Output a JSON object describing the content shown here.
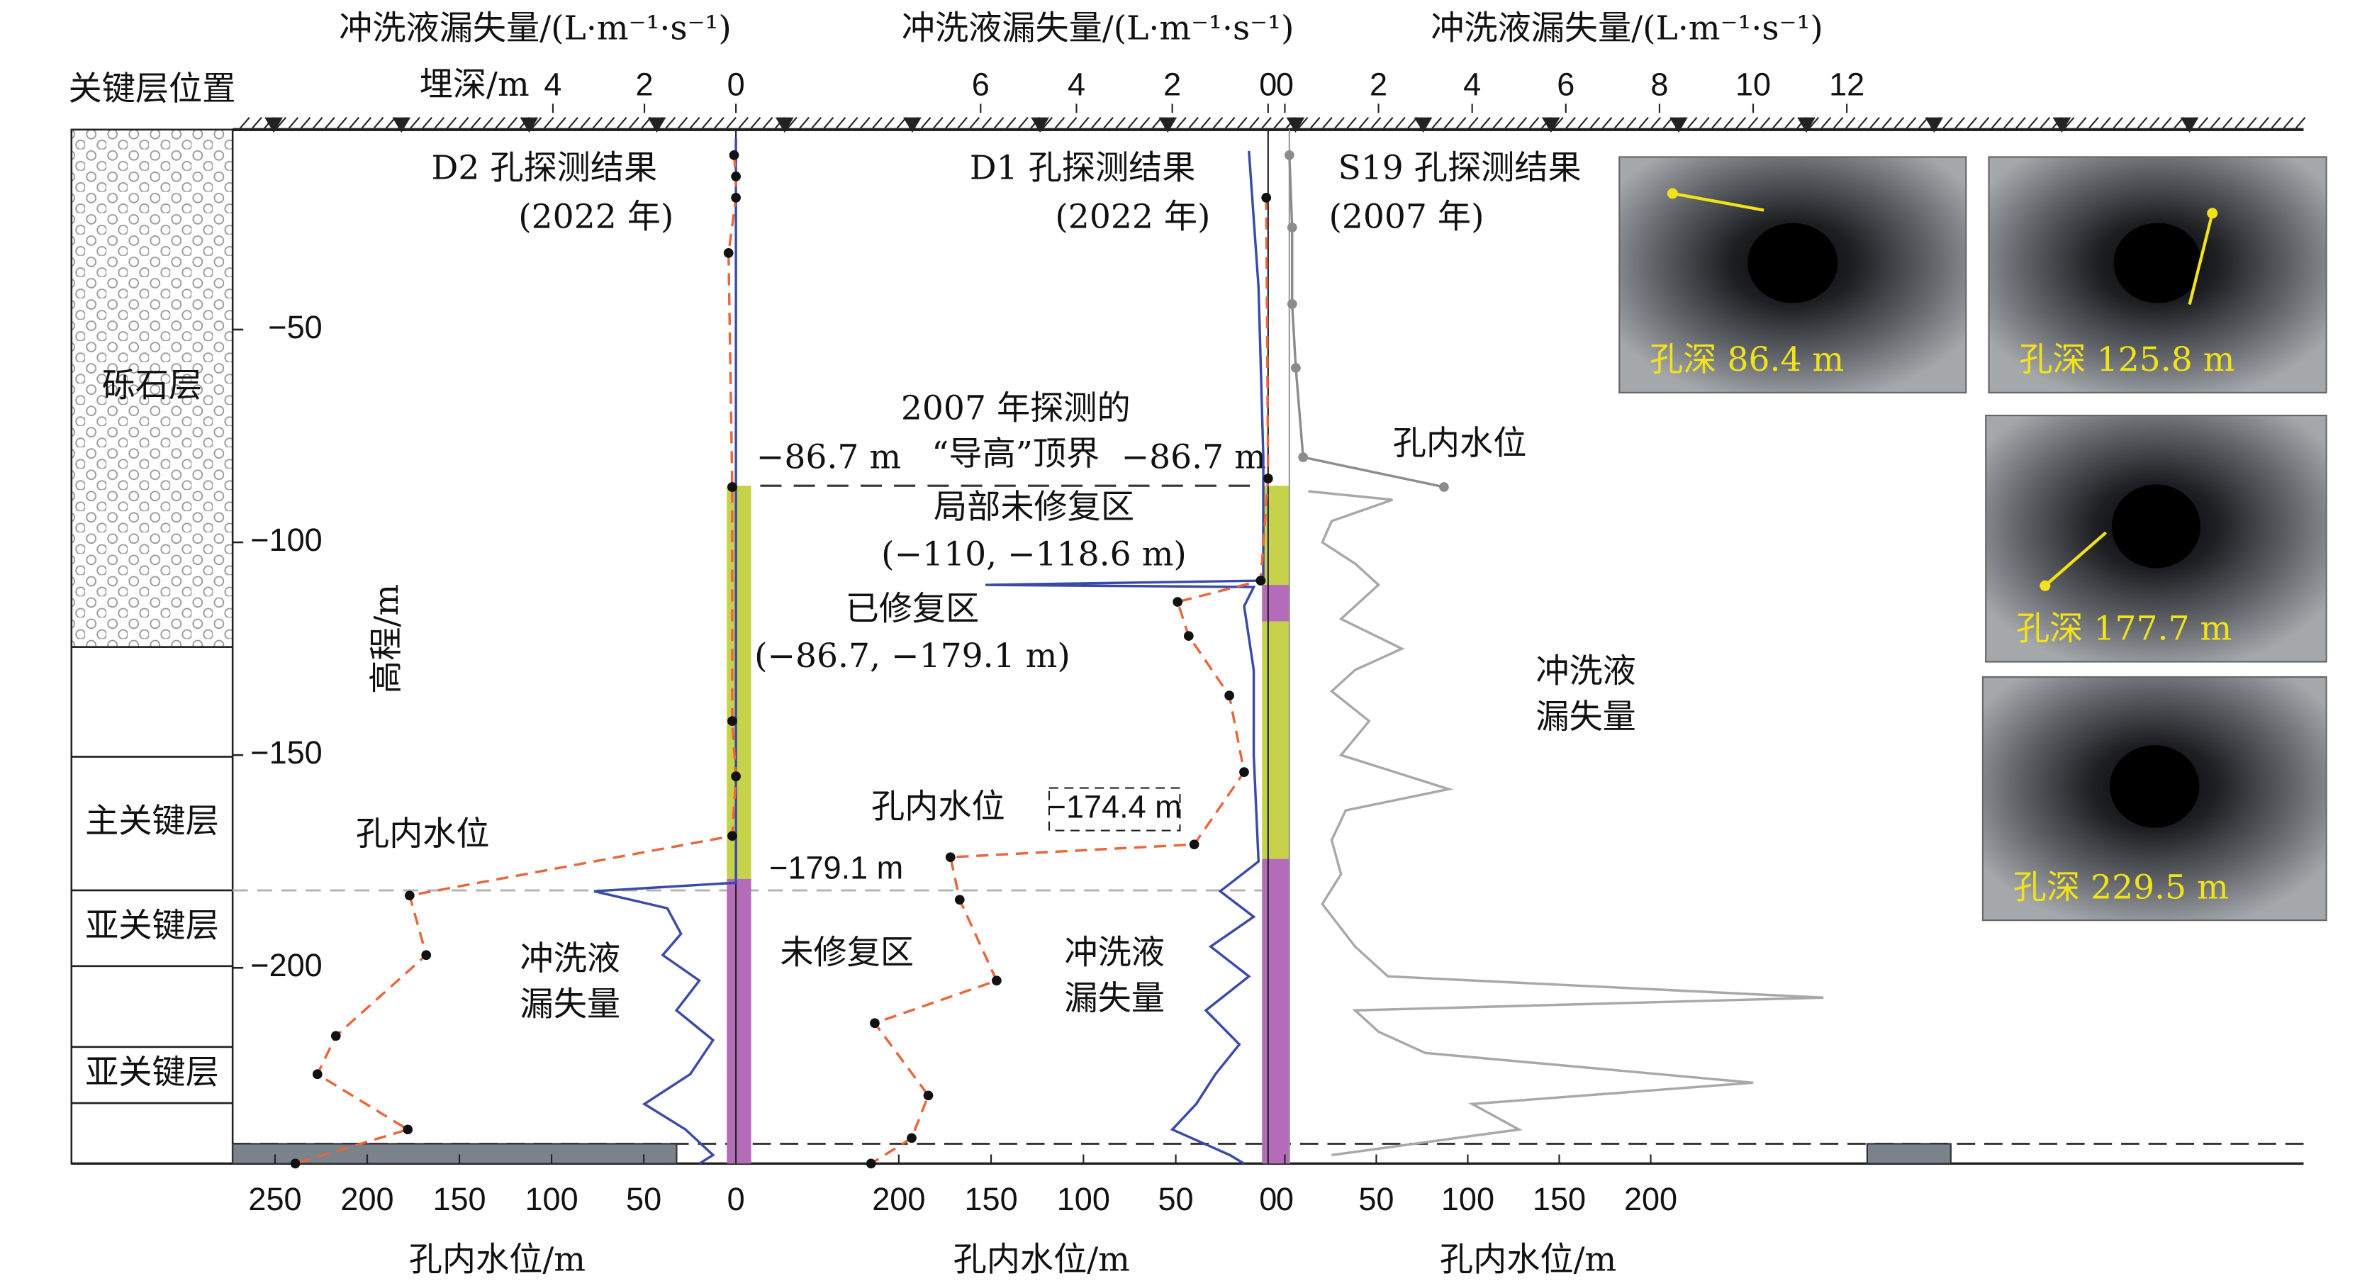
{
  "header": {
    "strata_title": "关键层位置",
    "depth_label": "埋深/m"
  },
  "elevation_axis": {
    "label": "高程/m",
    "ylim": [
      -246,
      -3
    ],
    "yticks": [
      {
        "value": -50,
        "label": "−50"
      },
      {
        "value": -100,
        "label": "−100"
      },
      {
        "value": -150,
        "label": "−150"
      },
      {
        "value": -200,
        "label": "−200"
      }
    ]
  },
  "strata": [
    {
      "name": "砾石层",
      "top": -3,
      "bottom": -124.6,
      "pattern": "gravel"
    },
    {
      "name": null,
      "top": -124.6,
      "bottom": -150.4,
      "pattern": "plain"
    },
    {
      "name": "主关键层",
      "top": -150.4,
      "bottom": -181.8,
      "pattern": "plain"
    },
    {
      "name": "亚关键层",
      "top": -181.8,
      "bottom": -199.6,
      "pattern": "plain"
    },
    {
      "name": null,
      "top": -199.6,
      "bottom": -218.6,
      "pattern": "plain"
    },
    {
      "name": "亚关键层",
      "top": -218.6,
      "bottom": -231.8,
      "pattern": "plain"
    },
    {
      "name": null,
      "top": -231.8,
      "bottom": -246,
      "pattern": "plain"
    }
  ],
  "reference_line": {
    "elevation": -86.7,
    "label_left": "−86.7 m",
    "label_right": "−86.7 m",
    "caption": [
      "2007 年探测的",
      "“导高”顶界"
    ]
  },
  "chart_data": [
    {
      "type": "line",
      "title": "D2 孔探测结果",
      "subtitle": "(2022 年)",
      "xlabel": "冲洗液漏失量/(L·m⁻¹·s⁻¹)",
      "xlim": [
        11,
        0
      ],
      "xticks": [
        4,
        2,
        0
      ],
      "x2label": "孔内水位/m",
      "x2lim": [
        273,
        0
      ],
      "x2ticks": [
        250,
        200,
        150,
        100,
        50,
        0
      ],
      "water_label": "孔内水位",
      "leak_label": [
        "冲洗液",
        "漏失量"
      ],
      "series": [
        {
          "axis": "x",
          "color": "#3a4aa8",
          "elevation": [
            -5,
            -180,
            -182,
            -186,
            -192,
            -197,
            -203,
            -210,
            -217,
            -225,
            -232,
            -238,
            -244,
            -246
          ],
          "values": [
            0,
            0,
            3.1,
            1.5,
            1.2,
            1.6,
            0.8,
            1.3,
            0.5,
            1.0,
            2.0,
            1.1,
            0.5,
            0.8
          ]
        },
        {
          "axis": "x2",
          "color": "#e8663a",
          "dashed": true,
          "markers": true,
          "elevation": [
            -9,
            -14,
            -19,
            -32,
            -87,
            -142,
            -155,
            -169,
            -183,
            -197,
            -216,
            -225,
            -238,
            -246
          ],
          "values": [
            1,
            0,
            0,
            4,
            2,
            2,
            0,
            2,
            177,
            168,
            217,
            227,
            178,
            239
          ]
        }
      ],
      "zones": [
        {
          "name": "已修复区",
          "range_label": "(−86.7, −179.1 m)",
          "from": -86.7,
          "to": -179.1,
          "color": "#c6d24a"
        },
        {
          "name": "未修复区",
          "boundary_label": "−179.1 m",
          "from": -179.1,
          "to": -246,
          "color": "#b46cb8"
        }
      ]
    },
    {
      "type": "line",
      "title": "D1 孔探测结果",
      "subtitle": "(2022 年)",
      "xlabel": "冲洗液漏失量/(L·m⁻¹·s⁻¹)",
      "xlim": [
        10.6,
        0
      ],
      "xticks": [
        6,
        4,
        2,
        0
      ],
      "x2label": "孔内水位/m",
      "x2lim": [
        275,
        0
      ],
      "x2ticks": [
        200,
        150,
        100,
        50,
        0
      ],
      "water_label": "孔内水位",
      "leak_label": [
        "冲洗液",
        "漏失量"
      ],
      "series": [
        {
          "axis": "x",
          "color": "#3a4aa8",
          "elevation": [
            -8,
            -40,
            -80,
            -109,
            -110,
            -110.5,
            -115,
            -130,
            -150,
            -175,
            -182,
            -188,
            -195,
            -202,
            -210,
            -218,
            -225,
            -232,
            -238,
            -244,
            -246
          ],
          "values": [
            0.4,
            0.2,
            0.1,
            0.1,
            5.9,
            0.3,
            0.5,
            0.3,
            0.3,
            0.2,
            1,
            0.3,
            1.2,
            0.4,
            1.3,
            0.6,
            1.1,
            1.5,
            2.0,
            0.8,
            0.5
          ]
        },
        {
          "axis": "x2",
          "color": "#e8663a",
          "dashed": true,
          "markers": true,
          "elevation": [
            -19,
            -85,
            -109,
            -114,
            -122,
            -136,
            -154,
            -171,
            -174,
            -184,
            -203,
            -213,
            -230,
            -240,
            -246
          ],
          "values": [
            1,
            0,
            4,
            49,
            43,
            21,
            13,
            40,
            172,
            167,
            147,
            213,
            184,
            193,
            215
          ]
        }
      ],
      "zones": [
        {
          "from": -86.7,
          "to": -110,
          "color": "#c6d24a"
        },
        {
          "name": "局部未修复区",
          "range_label": "(−110, −118.6 m)",
          "from": -110,
          "to": -118.6,
          "color": "#b46cb8"
        },
        {
          "from": -118.6,
          "to": -174.4,
          "color": "#c6d24a"
        },
        {
          "boundary_label": "−174.4 m",
          "from": -174.4,
          "to": -246,
          "color": "#b46cb8"
        }
      ]
    },
    {
      "type": "line",
      "title": "S19 孔探测结果",
      "subtitle": "(2007 年)",
      "xlabel": "冲洗液漏失量/(L·m⁻¹·s⁻¹)",
      "xlim": [
        0,
        12.5
      ],
      "xticks": [
        0,
        2,
        4,
        6,
        8,
        10,
        12
      ],
      "x2label": "孔内水位/m",
      "x2lim": [
        0,
        320
      ],
      "x2ticks": [
        0,
        50,
        100,
        150,
        200
      ],
      "water_label": "孔内水位",
      "leak_label": [
        "冲洗液",
        "漏失量"
      ],
      "series": [
        {
          "axis": "x",
          "color": "#a8a8a8",
          "elevation": [
            -88,
            -90,
            -95,
            -100,
            -105,
            -110,
            -118,
            -125,
            -130,
            -135,
            -142,
            -150,
            -158,
            -163,
            -170,
            -178,
            -185,
            -195,
            -202,
            -207,
            -210,
            -215,
            -220,
            -227,
            -232,
            -238,
            -244
          ],
          "values": [
            0.5,
            2.3,
            1.0,
            0.8,
            1.5,
            2.0,
            1.2,
            2.5,
            1.5,
            1.0,
            1.8,
            1.2,
            3.5,
            1.3,
            1.0,
            1.2,
            0.8,
            1.5,
            2.2,
            11.5,
            1.5,
            2.0,
            3.0,
            10,
            4,
            5,
            1.0
          ]
        },
        {
          "axis": "x2",
          "color": "#8c8c8c",
          "markers": true,
          "elevation": [
            -9,
            -26,
            -44,
            -59,
            -80,
            -87
          ],
          "values": [
            2.5,
            4,
            4,
            6,
            10,
            87
          ]
        }
      ],
      "zones": []
    }
  ],
  "photos": [
    {
      "label": "孔深 86.4 m"
    },
    {
      "label": "孔深 125.8 m"
    },
    {
      "label": "孔深 177.7 m"
    },
    {
      "label": "孔深 229.5 m"
    }
  ]
}
